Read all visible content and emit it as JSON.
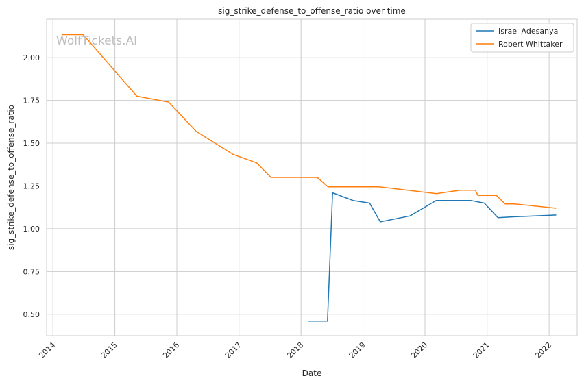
{
  "chart_data": {
    "type": "line",
    "title": "sig_strike_defense_to_offense_ratio over time",
    "xlabel": "Date",
    "ylabel": "sig_strike_defense_to_offense_ratio",
    "watermark": "WolfTickets.AI",
    "xlim": [
      "2013-11-25",
      "2022-06-15"
    ],
    "ylim": [
      0.375,
      2.225
    ],
    "x_ticks": [
      "2014",
      "2015",
      "2016",
      "2017",
      "2018",
      "2019",
      "2020",
      "2021",
      "2022"
    ],
    "y_ticks": [
      "0.50",
      "0.75",
      "1.00",
      "1.25",
      "1.50",
      "1.75",
      "2.00"
    ],
    "grid": true,
    "legend_position": "top-right",
    "series": [
      {
        "name": "Israel Adesanya",
        "color": "#1f77b4",
        "points": [
          {
            "x": "2018-02-10",
            "y": 0.46
          },
          {
            "x": "2018-06-06",
            "y": 0.46
          },
          {
            "x": "2018-07-06",
            "y": 1.21
          },
          {
            "x": "2018-11-03",
            "y": 1.165
          },
          {
            "x": "2019-02-09",
            "y": 1.15
          },
          {
            "x": "2019-04-13",
            "y": 1.04
          },
          {
            "x": "2019-10-05",
            "y": 1.075
          },
          {
            "x": "2020-03-07",
            "y": 1.165
          },
          {
            "x": "2020-09-26",
            "y": 1.165
          },
          {
            "x": "2020-12-15",
            "y": 1.15
          },
          {
            "x": "2021-03-06",
            "y": 1.065
          },
          {
            "x": "2021-06-12",
            "y": 1.07
          },
          {
            "x": "2022-02-12",
            "y": 1.08
          }
        ]
      },
      {
        "name": "Robert Whittaker",
        "color": "#ff7f0e",
        "points": [
          {
            "x": "2014-02-22",
            "y": 2.135
          },
          {
            "x": "2014-06-28",
            "y": 2.135
          },
          {
            "x": "2015-05-10",
            "y": 1.775
          },
          {
            "x": "2015-11-14",
            "y": 1.74
          },
          {
            "x": "2016-04-23",
            "y": 1.57
          },
          {
            "x": "2016-11-26",
            "y": 1.435
          },
          {
            "x": "2017-04-15",
            "y": 1.385
          },
          {
            "x": "2017-07-08",
            "y": 1.3
          },
          {
            "x": "2018-04-07",
            "y": 1.3
          },
          {
            "x": "2018-06-09",
            "y": 1.245
          },
          {
            "x": "2019-04-06",
            "y": 1.245
          },
          {
            "x": "2020-03-07",
            "y": 1.205
          },
          {
            "x": "2020-07-25",
            "y": 1.225
          },
          {
            "x": "2020-10-24",
            "y": 1.225
          },
          {
            "x": "2020-11-07",
            "y": 1.195
          },
          {
            "x": "2021-02-24",
            "y": 1.195
          },
          {
            "x": "2021-04-17",
            "y": 1.145
          },
          {
            "x": "2021-06-12",
            "y": 1.145
          },
          {
            "x": "2022-02-12",
            "y": 1.12
          }
        ]
      }
    ]
  }
}
